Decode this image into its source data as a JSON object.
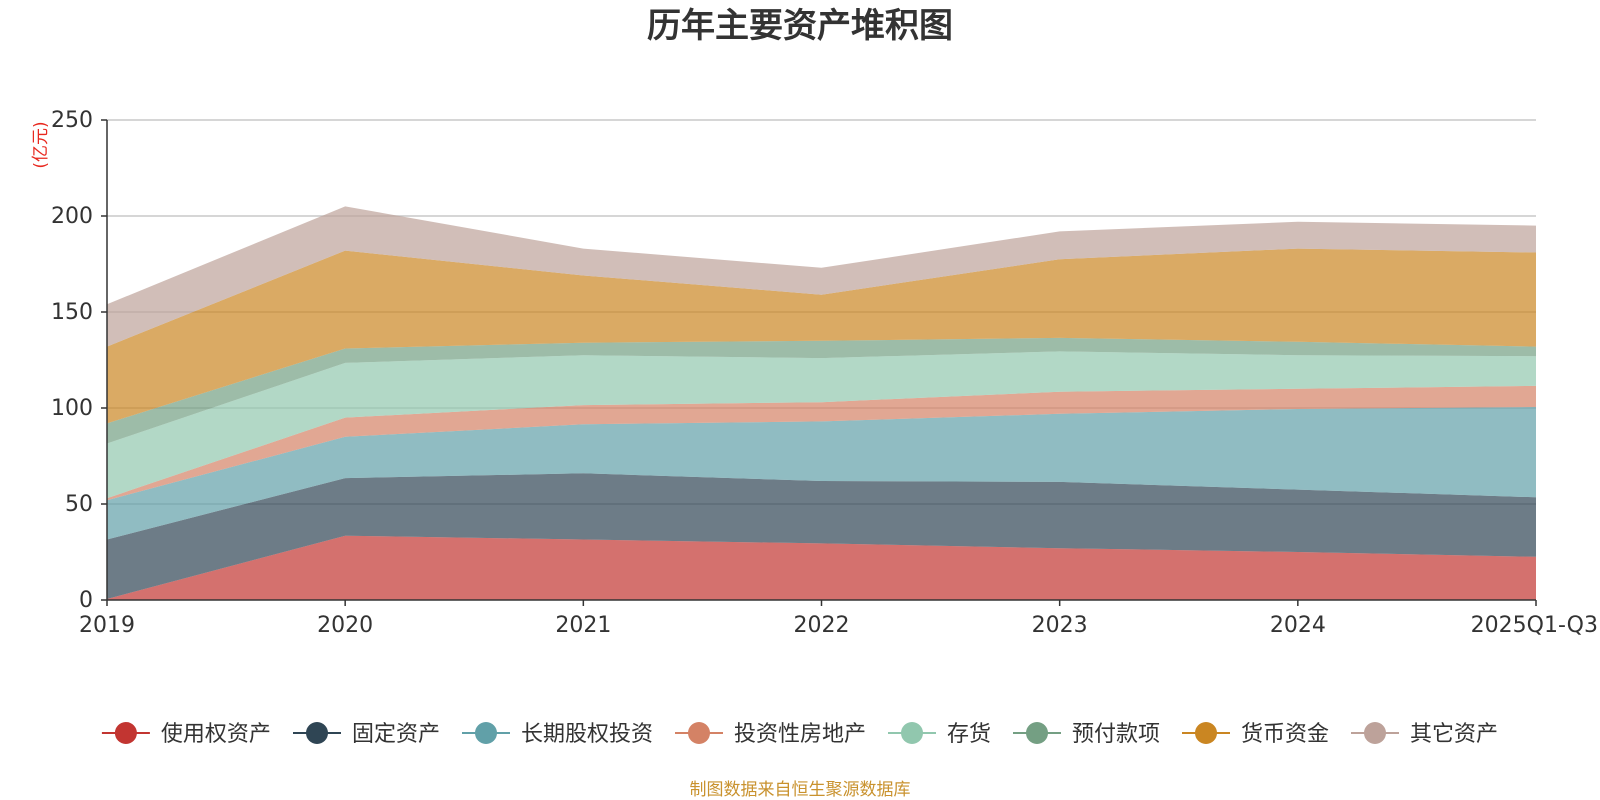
{
  "chart_data": {
    "type": "area",
    "stacked": true,
    "title": "历年主要资产堆积图",
    "ylabel": "(亿元)",
    "ylim": [
      0,
      250
    ],
    "yticks": [
      0,
      50,
      100,
      150,
      200,
      250
    ],
    "grid": true,
    "categories": [
      "2019",
      "2020",
      "2021",
      "2022",
      "2023",
      "2024",
      "2025Q1-Q3"
    ],
    "series": [
      {
        "name": "使用权资产",
        "color": "#c23531",
        "values": [
          0.5,
          33.5,
          31.5,
          29.5,
          27,
          25,
          22.5
        ]
      },
      {
        "name": "固定资产",
        "color": "#2f4554",
        "values": [
          31,
          30,
          34.5,
          32.5,
          34.5,
          32.5,
          31
        ]
      },
      {
        "name": "长期股权投资",
        "color": "#61a0a8",
        "values": [
          20.5,
          21.5,
          25.5,
          31,
          35.5,
          42,
          47
        ]
      },
      {
        "name": "投资性房地产",
        "color": "#d48265",
        "values": [
          1,
          10,
          10,
          10,
          11.5,
          10.5,
          11
        ]
      },
      {
        "name": "存货",
        "color": "#91c7ae",
        "values": [
          28.5,
          28.5,
          26,
          23,
          21,
          17.5,
          15.5
        ]
      },
      {
        "name": "预付款项",
        "color": "#749f83",
        "values": [
          10.5,
          7.5,
          6.5,
          9,
          7,
          7,
          5
        ]
      },
      {
        "name": "货币资金",
        "color": "#ca8622",
        "values": [
          40,
          51,
          35,
          24,
          41,
          48.5,
          49
        ]
      },
      {
        "name": "其它资产",
        "color": "#bda29a",
        "values": [
          22,
          23,
          14,
          14,
          14.5,
          14,
          14
        ]
      }
    ],
    "legend_position": "bottom",
    "source": "制图数据来自恒生聚源数据库"
  }
}
